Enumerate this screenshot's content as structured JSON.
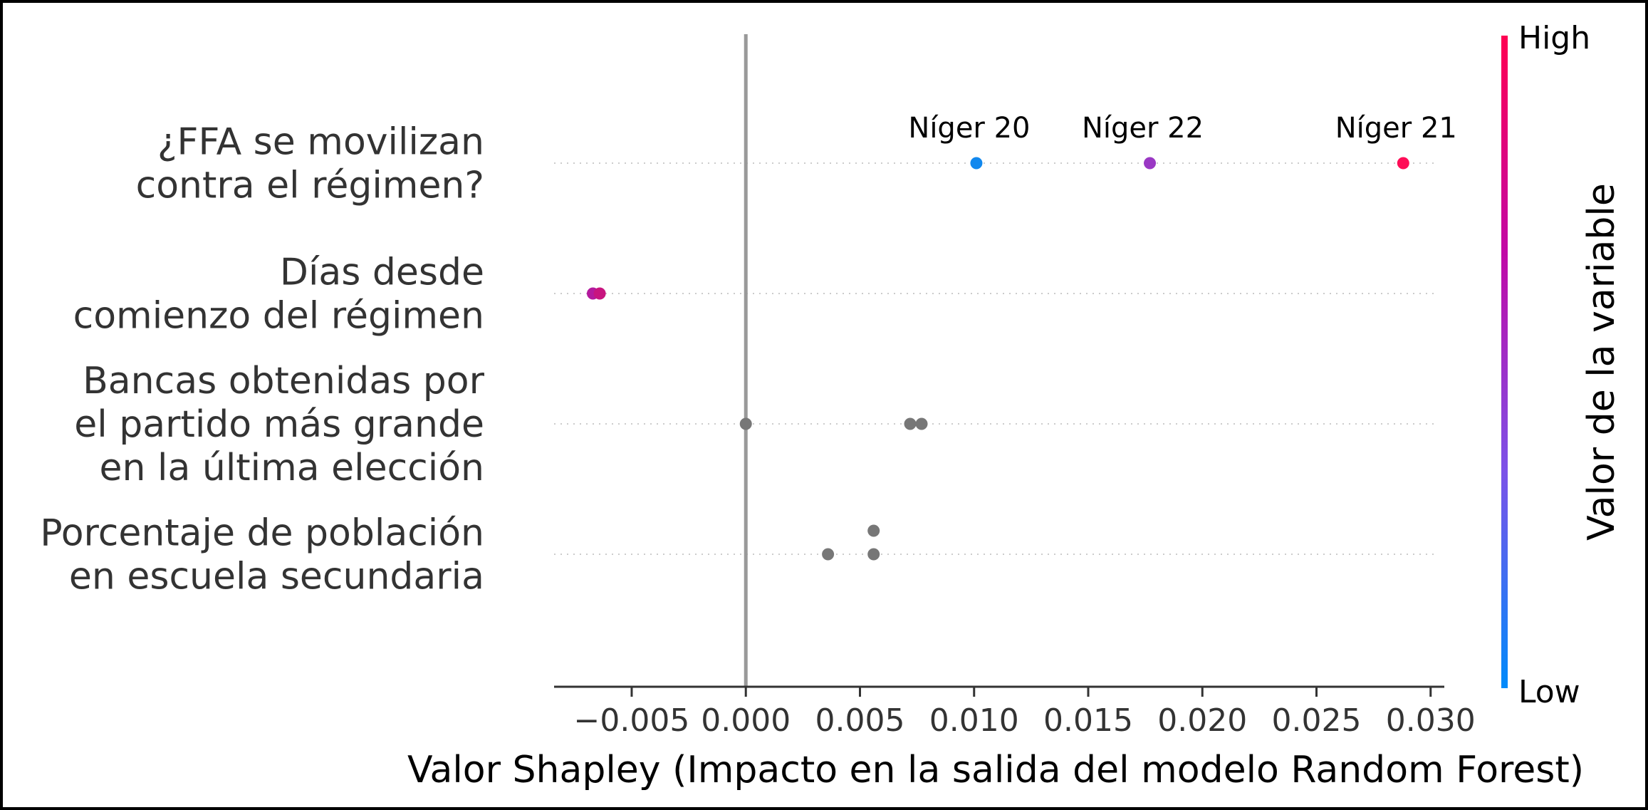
{
  "chart_data": {
    "type": "scatter",
    "xlabel": "Valor Shapley (Impacto en la salida del modelo Random Forest)",
    "xlim": [
      -0.0084,
      0.0306
    ],
    "xticks": [
      -0.005,
      0.0,
      0.005,
      0.01,
      0.015,
      0.02,
      0.025,
      0.03
    ],
    "xtick_labels": [
      "−0.005",
      "0.000",
      "0.005",
      "0.010",
      "0.015",
      "0.020",
      "0.025",
      "0.030"
    ],
    "zero_line": 0.0,
    "grid": "horizontal dotted per feature",
    "features": [
      {
        "label_lines": [
          "¿FFA se movilizan",
          "contra el régimen?"
        ],
        "points": [
          {
            "x": 0.0101,
            "offset": 0,
            "color": "#1188ee",
            "annotation": "Níger 20"
          },
          {
            "x": 0.0177,
            "offset": 0,
            "color": "#9a38c4",
            "annotation": "Níger 22"
          },
          {
            "x": 0.0288,
            "offset": 0,
            "color": "#ff0d57",
            "annotation": "Níger 21"
          }
        ]
      },
      {
        "label_lines": [
          "Días desde",
          "comienzo del régimen"
        ],
        "points": [
          {
            "x": -0.0067,
            "offset": 0,
            "color": "#b41a9e",
            "annotation": ""
          },
          {
            "x": -0.0064,
            "offset": 0,
            "color": "#c8157f",
            "annotation": ""
          }
        ]
      },
      {
        "label_lines": [
          "Bancas obtenidas por",
          "el partido más grande",
          "en la última elección"
        ],
        "points": [
          {
            "x": 0.0,
            "offset": 0,
            "color": "#777777",
            "annotation": ""
          },
          {
            "x": 0.0072,
            "offset": 0,
            "color": "#777777",
            "annotation": ""
          },
          {
            "x": 0.0077,
            "offset": 0,
            "color": "#777777",
            "annotation": ""
          }
        ]
      },
      {
        "label_lines": [
          "Porcentaje de población",
          "en escuela secundaria"
        ],
        "points": [
          {
            "x": 0.0056,
            "offset": -1,
            "color": "#777777",
            "annotation": ""
          },
          {
            "x": 0.0036,
            "offset": 0,
            "color": "#777777",
            "annotation": ""
          },
          {
            "x": 0.0056,
            "offset": 0,
            "color": "#777777",
            "annotation": ""
          }
        ]
      }
    ],
    "colorbar": {
      "title": "Valor de la variable",
      "high_label": "High",
      "low_label": "Low",
      "colors": [
        "#008bfb",
        "#7c52e8",
        "#c10aa6",
        "#ff0052"
      ]
    }
  }
}
